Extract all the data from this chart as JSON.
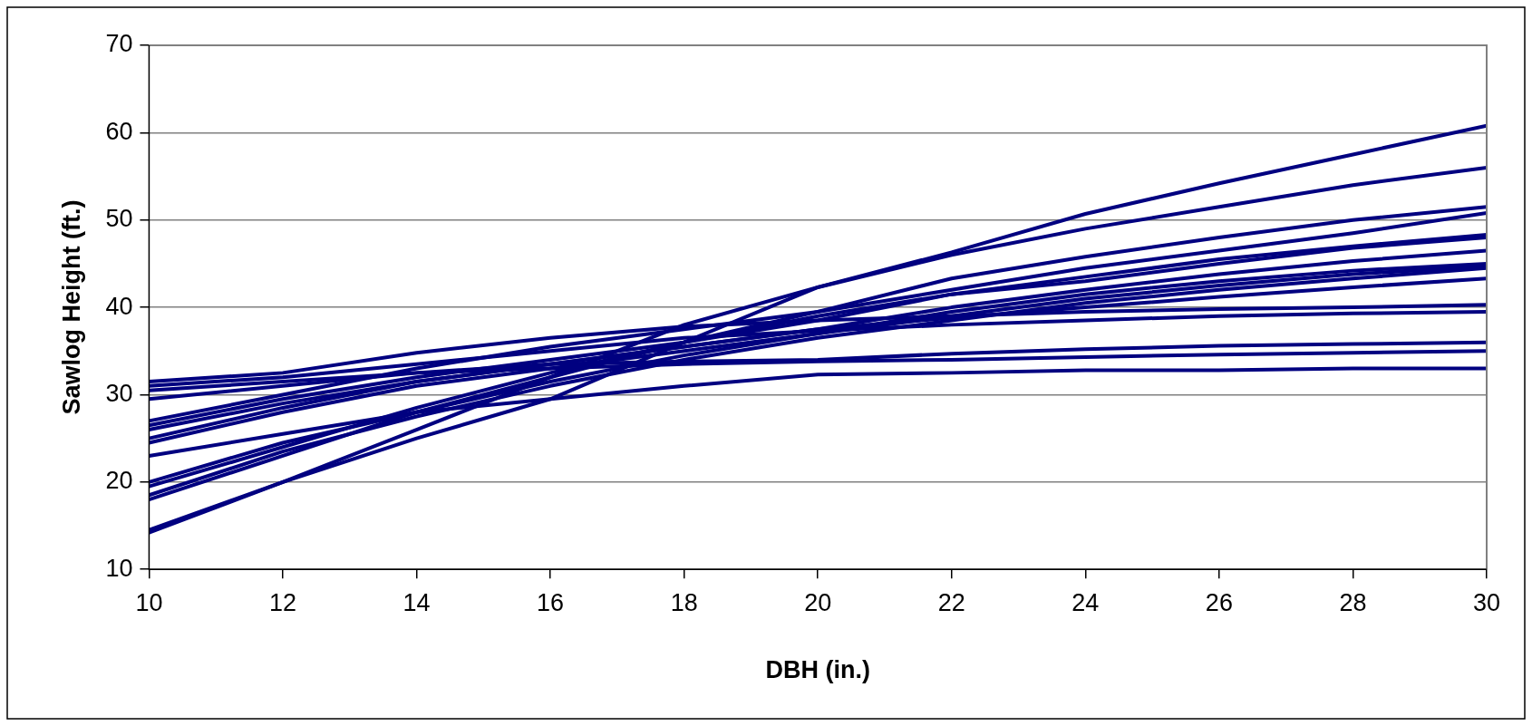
{
  "chart_data": {
    "type": "line",
    "xlabel": "DBH (in.)",
    "ylabel": "Sawlog Height (ft.)",
    "x": [
      10,
      12,
      14,
      16,
      18,
      20,
      22,
      24,
      26,
      28,
      30
    ],
    "xlim": [
      10,
      30
    ],
    "xticks": [
      10,
      12,
      14,
      16,
      18,
      20,
      22,
      24,
      26,
      28,
      30
    ],
    "ylim": [
      10,
      70
    ],
    "yticks": [
      10,
      20,
      30,
      40,
      50,
      60,
      70
    ],
    "grid": "y",
    "legend": false,
    "marker": "none",
    "line_style": "solid",
    "series": [
      {
        "color": "#000080",
        "values": [
          14.5,
          20,
          25,
          29.5,
          36,
          42.3,
          46.3,
          50.7,
          54.2,
          57.5,
          60.8
        ]
      },
      {
        "color": "#000080",
        "values": [
          14.2,
          20,
          26,
          32,
          38,
          42.3,
          46,
          49,
          51.5,
          54,
          56
        ]
      },
      {
        "color": "#000080",
        "values": [
          27,
          30,
          33,
          35.5,
          37.5,
          39.5,
          43.3,
          45.8,
          48,
          50,
          51.5
        ]
      },
      {
        "color": "#000080",
        "values": [
          18,
          23,
          28,
          32,
          36,
          39.5,
          42,
          44.5,
          46.5,
          48.5,
          50.8
        ]
      },
      {
        "color": "#000080",
        "values": [
          26.5,
          29.5,
          32,
          34,
          36,
          38.5,
          41.5,
          43.5,
          45.5,
          47,
          48.3
        ]
      },
      {
        "color": "#000080",
        "values": [
          19.5,
          24,
          28.5,
          32.5,
          36,
          39,
          41.5,
          43,
          45,
          46.8,
          48
        ]
      },
      {
        "color": "#000080",
        "values": [
          25,
          28.5,
          31.5,
          33.5,
          35.5,
          37.5,
          40,
          42,
          43.8,
          45.3,
          46.5
        ]
      },
      {
        "color": "#000080",
        "values": [
          20,
          24.5,
          28,
          31.5,
          34.5,
          37,
          39.5,
          41.5,
          43,
          44.2,
          45
        ]
      },
      {
        "color": "#000080",
        "values": [
          24.5,
          28,
          31,
          33,
          35,
          37,
          39,
          41,
          42.5,
          43.8,
          44.7
        ]
      },
      {
        "color": "#000080",
        "values": [
          18.5,
          23.5,
          27.5,
          31,
          34,
          36.5,
          38.5,
          40.5,
          42,
          43.3,
          44.5
        ]
      },
      {
        "color": "#000080",
        "values": [
          26,
          29,
          31.5,
          33.5,
          35.5,
          37.5,
          38.8,
          40,
          41.2,
          42.3,
          43.3
        ]
      },
      {
        "color": "#000080",
        "values": [
          31.5,
          32.5,
          34.8,
          36.5,
          37.8,
          38.5,
          39,
          39.5,
          39.8,
          40,
          40.3
        ]
      },
      {
        "color": "#000080",
        "values": [
          31,
          32,
          33.5,
          35,
          36.5,
          37.3,
          38,
          38.5,
          39,
          39.3,
          39.5
        ]
      },
      {
        "color": "#000080",
        "values": [
          29.5,
          31,
          32.5,
          33.5,
          33.8,
          34,
          34.7,
          35.2,
          35.6,
          35.8,
          36
        ]
      },
      {
        "color": "#000080",
        "values": [
          30.5,
          31.5,
          32.5,
          33,
          33.5,
          33.8,
          34,
          34.3,
          34.6,
          34.8,
          35
        ]
      },
      {
        "color": "#000080",
        "values": [
          23,
          25.5,
          28,
          29.5,
          31,
          32.3,
          32.5,
          32.8,
          32.8,
          33,
          33
        ]
      }
    ]
  }
}
